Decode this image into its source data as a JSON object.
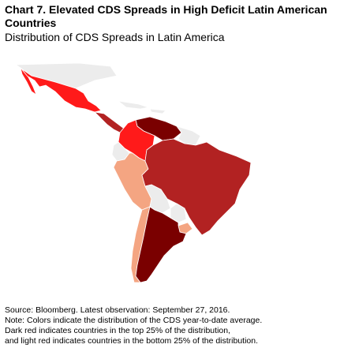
{
  "chart": {
    "title": "Chart 7. Elevated CDS Spreads in High Deficit Latin American Countries",
    "subtitle": "Distribution of CDS Spreads in Latin America"
  },
  "legend_colors": {
    "top_quartile": "#7a0000",
    "upper_middle": "#b22222",
    "middle": "#ff1a1a",
    "bottom_quartile": "#f4a582",
    "no_data": "#ececec"
  },
  "notes": {
    "source": "Source: Bloomberg. Latest observation: September 27, 2016.",
    "note_line1": "Note: Colors indicate the distribution of the CDS year-to-date average.",
    "note_line2": "Dark red indicates countries in the top 25% of the distribution,",
    "note_line3": "and light red indicates countries in the bottom 25% of the distribution."
  }
}
